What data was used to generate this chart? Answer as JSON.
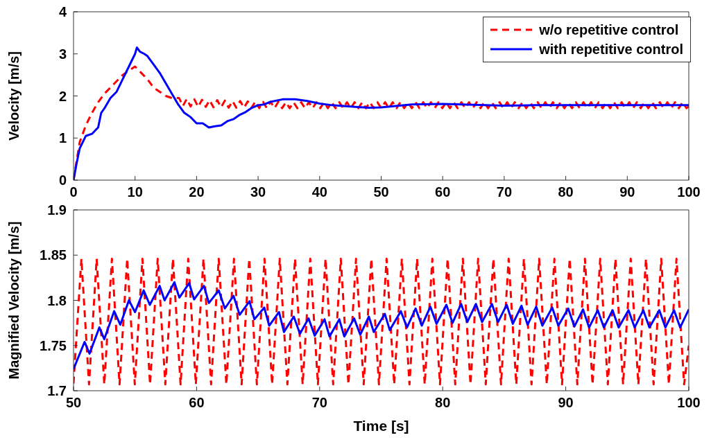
{
  "chart_data": [
    {
      "type": "line",
      "ylabel": "Velocity [m/s]",
      "xlim": [
        0,
        100
      ],
      "xticks": [
        0,
        10,
        20,
        30,
        40,
        50,
        60,
        70,
        80,
        90,
        100
      ],
      "ylim": [
        0,
        4
      ],
      "yticks": [
        0,
        1,
        2,
        3,
        4
      ],
      "legend": "top right",
      "grid": false,
      "series": [
        {
          "name": "w/o repetitive control",
          "color": "#ff0000",
          "line_style": "dashed",
          "x": [
            0,
            1,
            2,
            3,
            4,
            5,
            6,
            7,
            8,
            9,
            10,
            11,
            12,
            13,
            14,
            15,
            16,
            17.16,
            17.78,
            18.4,
            19.02,
            19.64,
            20.26,
            20.88,
            21.5,
            22.12,
            22.74,
            23.36,
            23.98,
            24.6,
            25.22,
            25.84,
            26.46,
            27.08,
            27.7,
            28.32,
            28.94,
            29.56,
            30.18,
            30.8,
            31.42,
            32.04,
            32.66,
            33.28,
            33.9,
            34.52,
            35.14,
            35.76,
            36.38,
            37.0,
            37.62,
            38.24,
            38.86,
            39.48,
            40.1,
            40.72,
            41.34,
            41.96,
            42.58,
            43.2,
            43.82,
            44.44,
            45.06,
            45.68,
            46.3,
            46.92,
            47.54,
            48.16,
            48.78,
            49.4,
            50,
            50.64,
            51.26,
            51.88,
            52.5,
            53.12,
            53.74,
            54.36,
            54.98,
            55.6,
            56.22,
            56.84,
            57.46,
            58.08,
            58.7,
            59.32,
            59.94,
            60.56,
            61.18,
            61.8,
            62.42,
            63.04,
            63.66,
            64.28,
            64.9,
            65.52,
            66.14,
            66.76,
            67.38,
            68.0,
            68.62,
            69.24,
            69.86,
            70.48,
            71.1,
            71.72,
            72.34,
            72.96,
            73.58,
            74.2,
            74.82,
            75.44,
            76.06,
            76.68,
            77.3,
            77.92,
            78.54,
            79.16,
            79.78,
            80.4,
            81.02,
            81.64,
            82.26,
            82.88,
            83.5,
            84.12,
            84.74,
            85.36,
            85.98,
            86.6,
            87.22,
            87.84,
            88.46,
            89.08,
            89.7,
            90.32,
            90.94,
            91.56,
            92.18,
            92.8,
            93.42,
            94.04,
            94.66,
            95.28,
            95.9,
            96.52,
            97.14,
            97.76,
            98.38,
            99.0,
            99.62,
            100
          ],
          "values": [
            0,
            0.9,
            1.3,
            1.6,
            1.85,
            2.05,
            2.2,
            2.35,
            2.5,
            2.6,
            2.7,
            2.55,
            2.4,
            2.2,
            2.1,
            2.0,
            1.95,
            1.95,
            1.76,
            1.93,
            1.75,
            1.92,
            1.74,
            1.91,
            1.74,
            1.9,
            1.73,
            1.9,
            1.73,
            1.89,
            1.72,
            1.88,
            1.72,
            1.88,
            1.72,
            1.87,
            1.72,
            1.87,
            1.71,
            1.86,
            1.71,
            1.86,
            1.71,
            1.86,
            1.71,
            1.85,
            1.71,
            1.85,
            1.71,
            1.85,
            1.71,
            1.85,
            1.71,
            1.85,
            1.71,
            1.85,
            1.71,
            1.85,
            1.71,
            1.85,
            1.71,
            1.85,
            1.71,
            1.85,
            1.71,
            1.85,
            1.71,
            1.85,
            1.71,
            1.85,
            1.71,
            1.85,
            1.71,
            1.85,
            1.71,
            1.85,
            1.71,
            1.85,
            1.71,
            1.85,
            1.71,
            1.85,
            1.71,
            1.85,
            1.71,
            1.85,
            1.71,
            1.85,
            1.71,
            1.85,
            1.71,
            1.85,
            1.71,
            1.85,
            1.71,
            1.85,
            1.71,
            1.85,
            1.71,
            1.85,
            1.71,
            1.85,
            1.71,
            1.85,
            1.71,
            1.85,
            1.71,
            1.85,
            1.71,
            1.85,
            1.71,
            1.85,
            1.71,
            1.85,
            1.71,
            1.85,
            1.71,
            1.85,
            1.71,
            1.85,
            1.71,
            1.85,
            1.71,
            1.85,
            1.71,
            1.85,
            1.71,
            1.85,
            1.71,
            1.85,
            1.71,
            1.85,
            1.71,
            1.85,
            1.71,
            1.85,
            1.71,
            1.85,
            1.71,
            1.85,
            1.71,
            1.85,
            1.71,
            1.85,
            1.71,
            1.85,
            1.71,
            1.85,
            1.71,
            1.85,
            1.71,
            1.75
          ]
        },
        {
          "name": "with repetitive control",
          "color": "#0000ff",
          "line_style": "solid",
          "x": [
            0,
            0.5,
            1,
            2,
            3,
            4,
            4.5,
            5,
            6,
            7,
            8,
            9,
            10,
            10.3,
            10.8,
            11.5,
            12,
            13,
            14,
            15,
            16,
            17,
            18,
            19,
            20,
            21,
            22,
            23,
            24,
            25,
            26,
            27,
            28,
            29,
            30,
            31,
            32,
            34,
            36,
            38,
            40,
            42,
            45,
            48,
            50,
            55,
            60,
            65,
            70,
            75,
            80,
            90,
            100
          ],
          "values": [
            0,
            0.4,
            0.75,
            1.05,
            1.1,
            1.25,
            1.6,
            1.7,
            1.95,
            2.1,
            2.4,
            2.7,
            3.0,
            3.15,
            3.05,
            3.0,
            2.95,
            2.75,
            2.55,
            2.3,
            2.05,
            1.8,
            1.6,
            1.5,
            1.35,
            1.35,
            1.25,
            1.28,
            1.3,
            1.4,
            1.45,
            1.55,
            1.62,
            1.72,
            1.78,
            1.8,
            1.86,
            1.92,
            1.92,
            1.88,
            1.82,
            1.78,
            1.75,
            1.72,
            1.73,
            1.8,
            1.81,
            1.79,
            1.77,
            1.78,
            1.78,
            1.78,
            1.78
          ]
        }
      ]
    },
    {
      "type": "line",
      "xlabel": "Time [s]",
      "ylabel": "Magnified Velocity [m/s]",
      "xlim": [
        50,
        100
      ],
      "xticks": [
        50,
        60,
        70,
        80,
        90,
        100
      ],
      "ylim": [
        1.7,
        1.9
      ],
      "yticks": [
        1.7,
        1.75,
        1.8,
        1.85,
        1.9
      ],
      "grid": false,
      "series": [
        {
          "color": "#ff0000",
          "line_style": "dashed",
          "x": [
            50,
            50.64,
            51.26,
            51.88,
            52.5,
            53.12,
            53.74,
            54.36,
            54.98,
            55.6,
            56.22,
            56.84,
            57.46,
            58.08,
            58.7,
            59.32,
            59.94,
            60.56,
            61.18,
            61.8,
            62.42,
            63.04,
            63.66,
            64.28,
            64.9,
            65.52,
            66.14,
            66.76,
            67.38,
            68.0,
            68.62,
            69.24,
            69.86,
            70.48,
            71.1,
            71.72,
            72.34,
            72.96,
            73.58,
            74.2,
            74.82,
            75.44,
            76.06,
            76.68,
            77.3,
            77.92,
            78.54,
            79.16,
            79.78,
            80.4,
            81.02,
            81.64,
            82.26,
            82.88,
            83.5,
            84.12,
            84.74,
            85.36,
            85.98,
            86.6,
            87.22,
            87.84,
            88.46,
            89.08,
            89.7,
            90.32,
            90.94,
            91.56,
            92.18,
            92.8,
            93.42,
            94.04,
            94.66,
            95.28,
            95.9,
            96.52,
            97.14,
            97.76,
            98.38,
            99.0,
            99.62,
            100
          ],
          "values": [
            1.708,
            1.846,
            1.707,
            1.846,
            1.707,
            1.846,
            1.707,
            1.846,
            1.707,
            1.846,
            1.707,
            1.846,
            1.707,
            1.846,
            1.707,
            1.846,
            1.707,
            1.846,
            1.707,
            1.846,
            1.707,
            1.846,
            1.707,
            1.846,
            1.707,
            1.846,
            1.707,
            1.846,
            1.707,
            1.846,
            1.707,
            1.846,
            1.707,
            1.846,
            1.707,
            1.846,
            1.707,
            1.846,
            1.707,
            1.846,
            1.707,
            1.846,
            1.707,
            1.846,
            1.707,
            1.846,
            1.707,
            1.846,
            1.707,
            1.846,
            1.707,
            1.846,
            1.707,
            1.846,
            1.707,
            1.846,
            1.707,
            1.846,
            1.707,
            1.846,
            1.707,
            1.846,
            1.707,
            1.846,
            1.707,
            1.846,
            1.707,
            1.846,
            1.707,
            1.846,
            1.707,
            1.846,
            1.707,
            1.846,
            1.707,
            1.846,
            1.707,
            1.846,
            1.707,
            1.846,
            1.707,
            1.75
          ]
        },
        {
          "color": "#0000ff",
          "line_style": "solid",
          "x": [
            50,
            50.9,
            51.3,
            52.1,
            52.5,
            53.3,
            53.8,
            54.5,
            55.0,
            55.7,
            56.2,
            57.0,
            57.4,
            58.2,
            58.6,
            59.4,
            59.8,
            60.6,
            61.0,
            61.8,
            62.3,
            63.0,
            63.5,
            64.3,
            64.7,
            65.5,
            65.9,
            66.7,
            67.1,
            67.9,
            68.4,
            69.1,
            69.6,
            70.4,
            70.8,
            71.6,
            72.0,
            72.8,
            73.3,
            74.0,
            74.4,
            75.3,
            75.7,
            76.6,
            77.1,
            77.8,
            78.3,
            79.0,
            79.5,
            80.3,
            80.8,
            81.5,
            82.0,
            82.7,
            83.2,
            84.0,
            84.5,
            85.2,
            85.7,
            86.4,
            86.9,
            87.6,
            88.1,
            88.9,
            89.4,
            90.2,
            90.7,
            91.4,
            91.9,
            92.6,
            93.1,
            93.8,
            94.3,
            95.1,
            95.6,
            96.3,
            96.8,
            97.6,
            98.1,
            98.8,
            99.3,
            100
          ],
          "values": [
            1.724,
            1.754,
            1.741,
            1.77,
            1.757,
            1.788,
            1.773,
            1.8,
            1.787,
            1.811,
            1.795,
            1.816,
            1.8,
            1.82,
            1.803,
            1.819,
            1.801,
            1.816,
            1.797,
            1.811,
            1.791,
            1.805,
            1.784,
            1.799,
            1.779,
            1.792,
            1.772,
            1.787,
            1.765,
            1.782,
            1.763,
            1.78,
            1.761,
            1.779,
            1.76,
            1.779,
            1.76,
            1.78,
            1.762,
            1.782,
            1.765,
            1.785,
            1.767,
            1.788,
            1.77,
            1.791,
            1.772,
            1.793,
            1.774,
            1.795,
            1.775,
            1.796,
            1.776,
            1.796,
            1.776,
            1.796,
            1.776,
            1.795,
            1.774,
            1.794,
            1.773,
            1.793,
            1.772,
            1.792,
            1.772,
            1.791,
            1.771,
            1.79,
            1.77,
            1.789,
            1.77,
            1.789,
            1.77,
            1.789,
            1.77,
            1.789,
            1.77,
            1.789,
            1.77,
            1.789,
            1.77,
            1.79
          ]
        }
      ]
    }
  ]
}
